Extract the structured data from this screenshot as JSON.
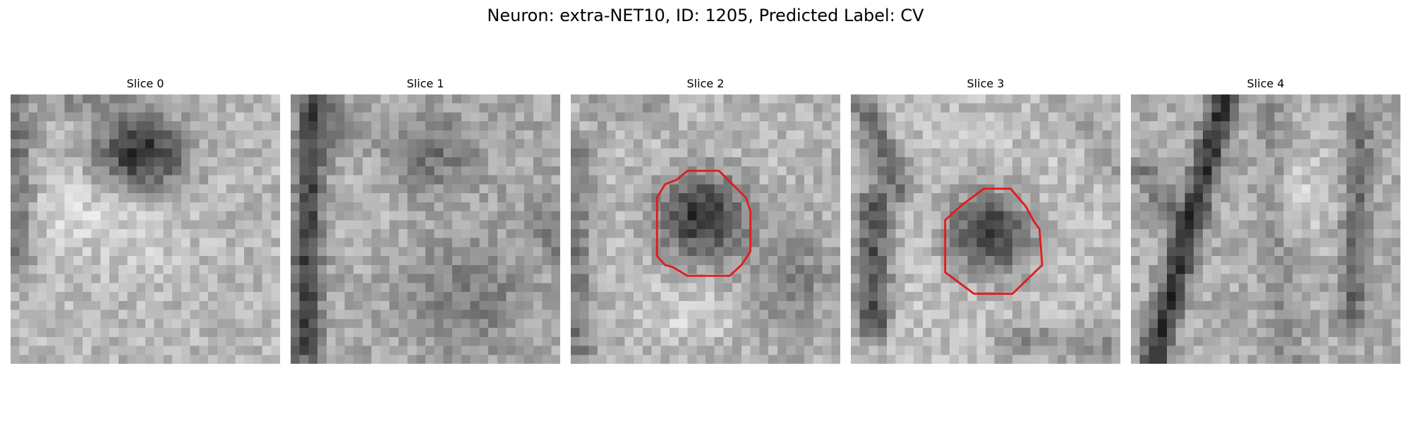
{
  "figure": {
    "title": "Neuron: extra-NET10, ID: 1205, Predicted Label: CV"
  },
  "panels": [
    {
      "title": "Slice 0",
      "has_contour": false
    },
    {
      "title": "Slice 1",
      "has_contour": false
    },
    {
      "title": "Slice 2",
      "has_contour": true
    },
    {
      "title": "Slice 3",
      "has_contour": true
    },
    {
      "title": "Slice 4",
      "has_contour": false
    }
  ],
  "colors": {
    "contour": "#e31a1c",
    "colormap": "grayscale"
  }
}
